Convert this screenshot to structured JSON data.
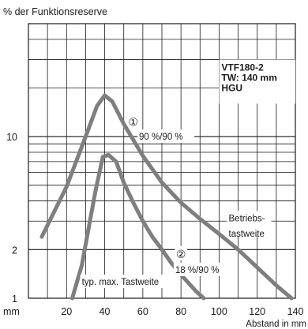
{
  "chart_data": {
    "type": "line",
    "y_axis_title": "% der Funktionsreserve",
    "x_axis_unit": "mm",
    "x_axis_title": "Abstand in mm",
    "x_ticks": [
      20,
      40,
      60,
      80,
      100,
      120,
      140
    ],
    "x_tick_labels": [
      "20",
      "40",
      "60",
      "80",
      "100",
      "120",
      "140"
    ],
    "xlim": [
      0,
      140
    ],
    "y_scale": "log",
    "ylim": [
      1,
      50
    ],
    "y_ticks": [
      1,
      2,
      10
    ],
    "y_tick_labels": [
      "1",
      "2",
      "10"
    ],
    "grid": true,
    "legend_box": {
      "line1": "VTF180-2",
      "line2": "TW: 140 mm",
      "line3": "HGU"
    },
    "series": [
      {
        "x": [
          7,
          20,
          30,
          36,
          40,
          44,
          50,
          60,
          70,
          80,
          90,
          100,
          110,
          120,
          130,
          138
        ],
        "y": [
          2.4,
          4.9,
          10.0,
          15.5,
          18.0,
          16.5,
          12.0,
          7.6,
          5.2,
          3.9,
          3.1,
          2.5,
          2.0,
          1.55,
          1.2,
          1.0
        ]
      },
      {
        "x": [
          23,
          28,
          35,
          39,
          42,
          46,
          50,
          55,
          60,
          65,
          70,
          75,
          80,
          88,
          92
        ],
        "y": [
          1.0,
          1.6,
          4.5,
          7.5,
          7.7,
          7.0,
          5.2,
          3.9,
          3.0,
          2.4,
          2.0,
          1.65,
          1.4,
          1.1,
          1.0
        ]
      }
    ],
    "annotations": [
      {
        "text": "①",
        "x": 55,
        "y": 12.5
      },
      {
        "text": "②",
        "x": 80,
        "y": 1.9
      },
      {
        "text": "90 %/90 %",
        "x": 58,
        "y": 10
      },
      {
        "text": "18 %/90 %",
        "x": 77,
        "y": 1.5
      },
      {
        "text": "Betriebs-",
        "x": 105,
        "y": 3.1
      },
      {
        "text": "tastweite",
        "x": 105,
        "y": 2.6
      },
      {
        "text": "typ. max. Tastweite",
        "x": 28,
        "y": 1.25
      }
    ]
  }
}
